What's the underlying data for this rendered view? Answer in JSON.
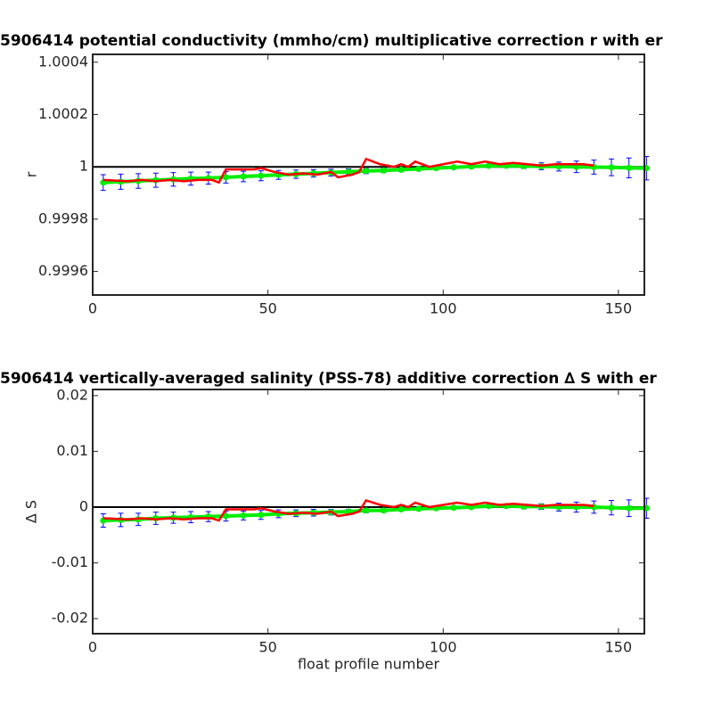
{
  "chart_data": [
    {
      "type": "line",
      "title": "5906414 potential conductivity (mmho/cm) multiplicative correction r with er",
      "ylabel": "r",
      "xlim": [
        0,
        157.4
      ],
      "xticks": [
        0,
        50,
        100,
        150
      ],
      "ylim": [
        0.99951,
        1.00043
      ],
      "yticks": [
        0.9996,
        0.9998,
        1,
        1.0002,
        1.0004
      ],
      "hline": 1,
      "series": [
        {
          "color": "#ff0000",
          "x": [
            3,
            10,
            14,
            18,
            22,
            26,
            30,
            34,
            36,
            38,
            42,
            46,
            48,
            52,
            56,
            60,
            64,
            68,
            70,
            74,
            76,
            78,
            82,
            86,
            88,
            90,
            92,
            96,
            100,
            104,
            108,
            112,
            116,
            120,
            124,
            128,
            132,
            136,
            140,
            143
          ],
          "values": [
            0.99995,
            0.999945,
            0.99995,
            0.999945,
            0.99995,
            0.999945,
            0.99995,
            0.99995,
            0.99994,
            0.99999,
            0.99999,
            0.99999,
            0.999995,
            0.99998,
            0.99997,
            0.999975,
            0.99997,
            0.99998,
            0.99996,
            0.99997,
            0.99998,
            1.00003,
            1.00001,
            1,
            1.00001,
            1,
            1.00002,
            1,
            1.00001,
            1.00002,
            1.00001,
            1.00002,
            1.00001,
            1.000015,
            1.00001,
            1.000005,
            1.00001,
            1.00001,
            1.00001,
            1.000005
          ]
        },
        {
          "color": "#00ee00",
          "error_color": "#0000ff",
          "x": [
            3,
            8,
            13,
            18,
            23,
            28,
            33,
            38,
            43,
            48,
            53,
            58,
            63,
            68,
            73,
            78,
            83,
            88,
            93,
            98,
            103,
            108,
            113,
            118,
            123,
            128,
            133,
            138,
            143,
            148,
            153,
            158
          ],
          "values": [
            0.99994,
            0.999943,
            0.999946,
            0.999949,
            0.999952,
            0.999955,
            0.999957,
            0.99996,
            0.999963,
            0.999966,
            0.999969,
            0.999972,
            0.999975,
            0.999978,
            0.999981,
            0.999984,
            0.999986,
            0.999989,
            0.999992,
            0.999995,
            0.999998,
            1.000001,
            1.000004,
            1.000004,
            1.000003,
            1.000002,
            1.000001,
            1,
            0.999999,
            0.999998,
            0.999996,
            0.999995
          ],
          "errors": [
            3e-05,
            2.9e-05,
            2.8e-05,
            2.7e-05,
            2.6e-05,
            2.5e-05,
            2.3e-05,
            2.2e-05,
            2e-05,
            1.9e-05,
            1.7e-05,
            1.6e-05,
            1.4e-05,
            1.3e-05,
            1.1e-05,
            1e-05,
            8e-06,
            7e-06,
            5e-06,
            4e-06,
            3e-06,
            3e-06,
            3e-06,
            5e-06,
            9e-06,
            1.3e-05,
            1.7e-05,
            2.2e-05,
            2.7e-05,
            3.2e-05,
            3.8e-05,
            4.5e-05
          ]
        }
      ]
    },
    {
      "type": "line",
      "title": "5906414 vertically-averaged salinity (PSS-78) additive correction ∆ S with er",
      "ylabel": "∆ S",
      "xlabel": "float profile number",
      "xlim": [
        0,
        157.4
      ],
      "xticks": [
        0,
        50,
        100,
        150
      ],
      "ylim": [
        -0.0227,
        0.0211
      ],
      "yticks": [
        -0.02,
        -0.01,
        0,
        0.01,
        0.02
      ],
      "hline": 0,
      "series": [
        {
          "color": "#ff0000",
          "x": [
            3,
            10,
            14,
            18,
            22,
            26,
            30,
            34,
            36,
            38,
            42,
            46,
            48,
            52,
            56,
            60,
            64,
            68,
            70,
            74,
            76,
            78,
            82,
            86,
            88,
            90,
            92,
            96,
            100,
            104,
            108,
            112,
            116,
            120,
            124,
            128,
            132,
            136,
            140,
            143
          ],
          "values": [
            -0.002,
            -0.0022,
            -0.002,
            -0.0022,
            -0.002,
            -0.0022,
            -0.002,
            -0.002,
            -0.0024,
            -0.0004,
            -0.0004,
            -0.0004,
            -0.0002,
            -0.0008,
            -0.0012,
            -0.001,
            -0.0012,
            -0.0008,
            -0.0016,
            -0.0012,
            -0.0008,
            0.0012,
            0.0004,
            0,
            0.0004,
            0,
            0.0008,
            0,
            0.0004,
            0.0008,
            0.0004,
            0.0008,
            0.0004,
            0.0006,
            0.0004,
            0.0002,
            0.0004,
            0.0004,
            0.0004,
            0.0002
          ]
        },
        {
          "color": "#00ee00",
          "error_color": "#0000ff",
          "x": [
            3,
            8,
            13,
            18,
            23,
            28,
            33,
            38,
            43,
            48,
            53,
            58,
            63,
            68,
            73,
            78,
            83,
            88,
            93,
            98,
            103,
            108,
            113,
            118,
            123,
            128,
            133,
            138,
            143,
            148,
            153,
            158
          ],
          "values": [
            -0.0024,
            -0.0023,
            -0.0022,
            -0.002,
            -0.0019,
            -0.0018,
            -0.0017,
            -0.0016,
            -0.0015,
            -0.0014,
            -0.0012,
            -0.0011,
            -0.001,
            -0.0009,
            -0.0008,
            -0.0006,
            -0.0006,
            -0.0004,
            -0.0003,
            -0.0002,
            -0.0001,
            0,
            0.0002,
            0.0002,
            0.0001,
            0.0001,
            0,
            0,
            0,
            -0.0001,
            -0.0002,
            -0.0002
          ],
          "errors": [
            0.0012,
            0.0012,
            0.0011,
            0.0011,
            0.001,
            0.001,
            0.0009,
            0.0009,
            0.0008,
            0.0008,
            0.0007,
            0.0006,
            0.0006,
            0.0005,
            0.0004,
            0.0004,
            0.0003,
            0.0003,
            0.0002,
            0.0002,
            0.0001,
            0.0001,
            0.0001,
            0.0002,
            0.0004,
            0.0005,
            0.0007,
            0.0009,
            0.0011,
            0.0013,
            0.0015,
            0.0018
          ]
        }
      ]
    }
  ]
}
